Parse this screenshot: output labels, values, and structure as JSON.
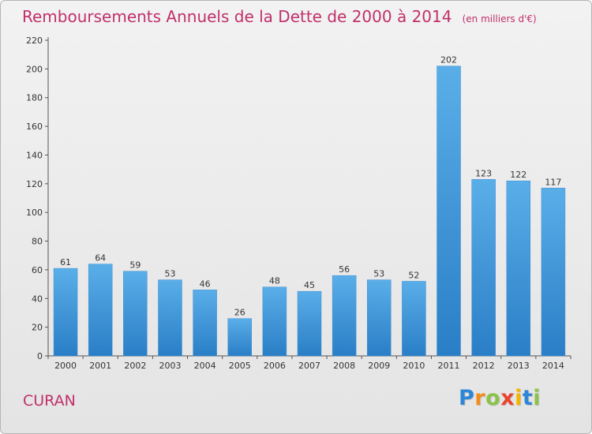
{
  "header": {
    "title": "Remboursements Annuels de la Dette de 2000 à 2014",
    "subtitle": "(en milliers d'€)"
  },
  "footer": {
    "commune": "CURAN",
    "logo": [
      "P",
      "r",
      "o",
      "x",
      "i",
      "t",
      "i"
    ],
    "logo_colors": [
      "#2e86d6",
      "#f28c1c",
      "#8bc34a",
      "#e8452c",
      "#f4b400",
      "#2e86d6",
      "#8bc34a"
    ]
  },
  "colors": {
    "accent": "#c0306a",
    "bar_light": "#5aaee8",
    "bar_dark": "#2a7ec6"
  },
  "chart_data": {
    "type": "bar",
    "title": "Remboursements Annuels de la Dette de 2000 à 2014",
    "subtitle": "(en milliers d'€)",
    "categories": [
      "2000",
      "2001",
      "2002",
      "2003",
      "2004",
      "2005",
      "2006",
      "2007",
      "2008",
      "2009",
      "2010",
      "2011",
      "2012",
      "2013",
      "2014"
    ],
    "values": [
      61,
      64,
      59,
      53,
      46,
      26,
      48,
      45,
      56,
      53,
      52,
      202,
      123,
      122,
      117
    ],
    "ylim": [
      0,
      220
    ],
    "yticks": [
      0,
      20,
      40,
      60,
      80,
      100,
      120,
      140,
      160,
      180,
      200,
      220
    ],
    "xlabel": "",
    "ylabel": "",
    "grid": false,
    "data_labels": true
  }
}
